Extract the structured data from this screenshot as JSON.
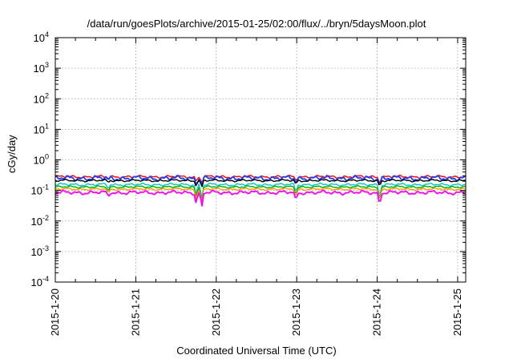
{
  "chart_data": {
    "type": "line",
    "title": "/data/run/goesPlots/archive/2015-01-25/02:00/flux/../bryn/5daysMoon.plot",
    "xlabel": "Coordinated Universal Time (UTC)",
    "ylabel": "cGy/day",
    "x_range_days": [
      0,
      5.1
    ],
    "x_ticks": [
      "2015-1-20",
      "2015-1-21",
      "2015-1-22",
      "2015-1-23",
      "2015-1-24",
      "2015-1-25"
    ],
    "y_scale": "log",
    "ylim": [
      0.0001,
      10000
    ],
    "y_tick_exponents": [
      "-4",
      "-3",
      "-2",
      "-1",
      "0",
      "1",
      "2",
      "3",
      "4"
    ],
    "y_tick_base": "10",
    "grid": true,
    "legend": "none",
    "series": [
      {
        "color": "#ff0000",
        "baseline": 0.28,
        "variation": 0.05
      },
      {
        "color": "#1e3cff",
        "baseline": 0.25,
        "variation": 0.09
      },
      {
        "color": "#000000",
        "baseline": 0.21,
        "variation": 0.04
      },
      {
        "color": "#00c8c8",
        "baseline": 0.155,
        "variation": 0.05
      },
      {
        "color": "#00b000",
        "baseline": 0.13,
        "variation": 0.04
      },
      {
        "color": "#ff9900",
        "baseline": 0.11,
        "variation": 0.04
      },
      {
        "color": "#ff00ff",
        "baseline": 0.085,
        "variation": 0.07
      }
    ],
    "dips": [
      {
        "x": 1.75,
        "min": 0.035
      },
      {
        "x": 1.82,
        "min": 0.025
      },
      {
        "x": 2.99,
        "min": 0.045
      },
      {
        "x": 4.03,
        "min": 0.03
      },
      {
        "x": 0.66,
        "min": 0.06
      }
    ]
  }
}
